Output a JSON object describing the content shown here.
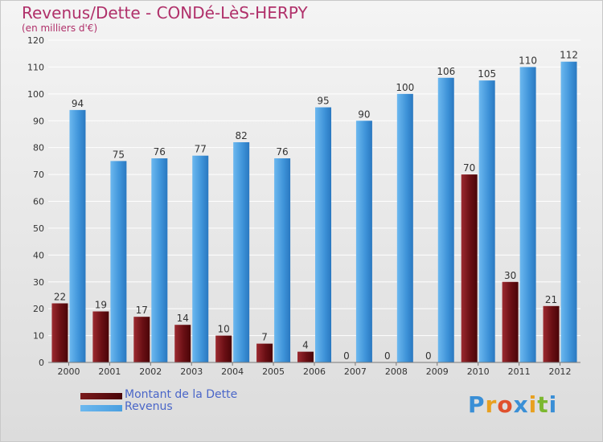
{
  "title": "Revenus/Dette - CONDé-LèS-HERPY",
  "subtitle": "(en milliers d'€)",
  "logo": {
    "text": "Proxiti",
    "letter_colors": [
      "#3a8fd6",
      "#e8a020",
      "#e0502c",
      "#3a8fd6",
      "#e8a020",
      "#7cb82f",
      "#3a8fd6"
    ]
  },
  "chart_data": {
    "type": "bar",
    "categories": [
      "2000",
      "2001",
      "2002",
      "2003",
      "2004",
      "2005",
      "2006",
      "2007",
      "2008",
      "2009",
      "2010",
      "2011",
      "2012"
    ],
    "series": [
      {
        "name": "Montant de la Dette",
        "color": "#7a1a1c",
        "values": [
          22,
          19,
          17,
          14,
          10,
          7,
          4,
          0,
          0,
          0,
          70,
          30,
          21
        ]
      },
      {
        "name": "Revenus",
        "color": "#4a9fe0",
        "values": [
          94,
          75,
          76,
          77,
          82,
          76,
          95,
          90,
          100,
          106,
          105,
          110,
          112
        ]
      }
    ],
    "ylim": [
      0,
      120
    ],
    "yticks": [
      0,
      10,
      20,
      30,
      40,
      50,
      60,
      70,
      80,
      90,
      100,
      110,
      120
    ],
    "grid": true,
    "legend_position": "bottom-left"
  }
}
